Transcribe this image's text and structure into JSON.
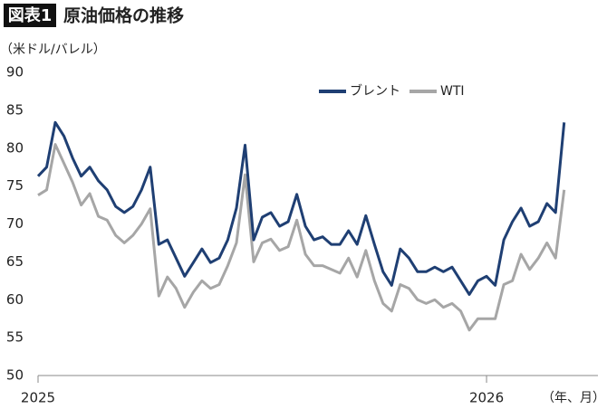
{
  "chart_data": {
    "type": "line",
    "title_label": "図表1",
    "title": "原油価格の推移",
    "y_label": "（米ドル/バレル）",
    "x_label": "（年、月）",
    "categories": [
      "2025",
      null,
      null,
      null,
      null,
      null,
      null,
      null,
      null,
      null,
      null,
      null,
      null,
      null,
      null,
      null,
      null,
      null,
      null,
      null,
      null,
      null,
      null,
      null,
      null,
      null,
      null,
      null,
      null,
      null,
      null,
      null,
      null,
      null,
      null,
      null,
      null,
      null,
      null,
      null,
      null,
      null,
      null,
      null,
      null,
      null,
      null,
      null,
      null,
      null,
      null,
      null,
      "2026",
      null,
      null,
      null,
      null,
      null,
      null,
      null,
      null,
      null
    ],
    "series": [
      {
        "name": "ブレント",
        "color": "#1f3f73",
        "values": [
          76.3,
          77.5,
          83.4,
          81.6,
          78.7,
          76.3,
          77.5,
          75.7,
          74.5,
          72.3,
          71.5,
          72.3,
          74.5,
          77.5,
          67.3,
          67.9,
          65.5,
          63.1,
          64.9,
          66.7,
          64.9,
          65.5,
          67.9,
          72.1,
          80.4,
          67.9,
          70.9,
          71.5,
          69.7,
          70.3,
          73.9,
          69.7,
          67.9,
          68.3,
          67.3,
          67.3,
          69.1,
          67.3,
          71.1,
          67.3,
          63.7,
          61.9,
          66.7,
          65.5,
          63.7,
          63.7,
          64.3,
          63.7,
          64.3,
          62.5,
          60.7,
          62.5,
          63.1,
          61.9,
          67.9,
          70.3,
          72.1,
          69.7,
          70.3,
          72.7,
          71.5,
          83.4
        ]
      },
      {
        "name": "WTI",
        "color": "#a6a6a6",
        "values": [
          73.8,
          74.5,
          80.5,
          78,
          75.5,
          72.5,
          74,
          71,
          70.5,
          68.5,
          67.5,
          68.5,
          70,
          72,
          60.5,
          63,
          61.5,
          59,
          61,
          62.5,
          61.5,
          62,
          64.5,
          67.5,
          76.5,
          65,
          67.5,
          68,
          66.5,
          67,
          70.5,
          66,
          64.5,
          64.5,
          64,
          63.5,
          65.5,
          63,
          66.5,
          62.5,
          59.5,
          58.5,
          62,
          61.5,
          60,
          59.5,
          60,
          59,
          59.5,
          58.5,
          56,
          57.5,
          57.5,
          57.5,
          62,
          62.5,
          66,
          64,
          65.5,
          67.5,
          65.5,
          74.5
        ]
      }
    ],
    "ylim": [
      50,
      90
    ],
    "yticks": [
      50,
      55,
      60,
      65,
      70,
      75,
      80,
      85,
      90
    ],
    "grid": false,
    "legend": "top"
  }
}
